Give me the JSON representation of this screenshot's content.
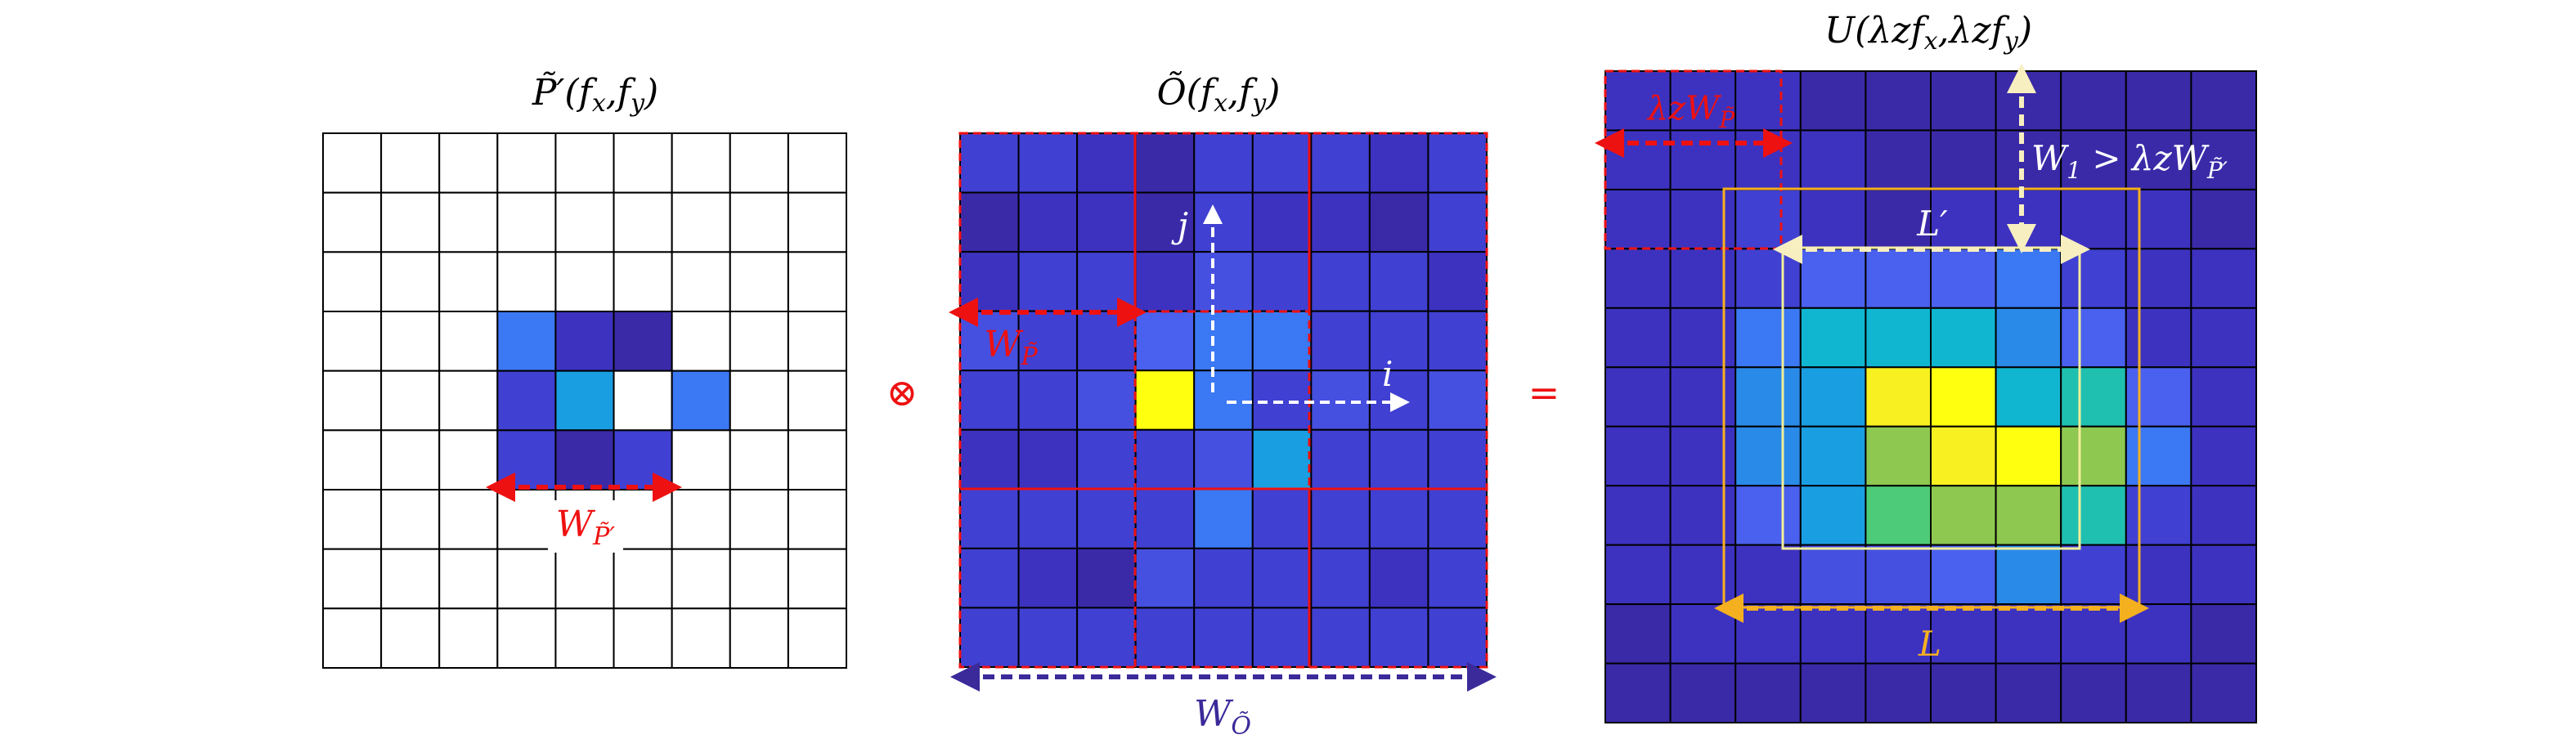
{
  "colors": {
    "grid_line": "#000000",
    "red": "#ee1111",
    "purple_dashed": "#3a2a9a",
    "white_arrow": "#ffffff",
    "orange": "#f5b020",
    "cream": "#f8efc0",
    "pale_yellow": "#f2ee9a",
    "palette": {
      "0": "#ffffff",
      "1": "#3a2aa8",
      "2": "#3d32c0",
      "3": "#4040d2",
      "4": "#4650e0",
      "5": "#4a60ee",
      "6": "#3b78f4",
      "7": "#2a8ae8",
      "8": "#1a9ee2",
      "9": "#10b6d0",
      "A": "#20c0b0",
      "B": "#4ecb78",
      "C": "#8ec850",
      "D": "#a8c43a",
      "E": "#f8f020",
      "F": "#ffff10",
      "G": "#fcc436"
    }
  },
  "panel_p": {
    "title": "P̃′(f",
    "title_sub_x": "x",
    "title_mid": ",f",
    "title_sub_y": "y",
    "title_end": ")",
    "cells": [
      "000000000",
      "000000000",
      "000000000",
      "000621000",
      "000380600",
      "000313000",
      "000000000",
      "000000000",
      "000000000"
    ],
    "width_label": "W",
    "width_label_sub": "P̃′"
  },
  "operator_convolve": "⊗",
  "panel_o": {
    "title": "Õ(f",
    "title_sub_x": "x",
    "title_mid": ",f",
    "title_sub_y": "y",
    "title_end": ")",
    "cells": [
      "332133323",
      "122132213",
      "233243332",
      "433566333",
      "334F63434",
      "223348333",
      "333363333",
      "321433323",
      "333333333"
    ],
    "label_j": "j",
    "label_i": "i",
    "width_label": "W",
    "width_label_sub": "P̃",
    "bottom_label": "W",
    "bottom_label_sub": "Õ"
  },
  "operator_equals": "=",
  "panel_u": {
    "title": "U(λzf",
    "title_sub_x": "x",
    "title_mid": ",λzf",
    "title_sub_y": "y",
    "title_end": ")",
    "cells": [
      "2221111111",
      "2222111111",
      "2232122221",
      "2235556322",
      "2269997522",
      "2278EF9A52",
      "2278CEFC62",
      "2258BCCA32",
      "2224457322",
      "1222222221",
      "1111111111"
    ],
    "top_box_label": "λzW",
    "top_box_label_sub": "P̃",
    "w1_label": "W",
    "w1_label_sub": "1",
    "w1_label_rest": " > λzW",
    "w1_label_sub2": "P̃′",
    "inner_label": "L′",
    "outer_label": "L"
  }
}
